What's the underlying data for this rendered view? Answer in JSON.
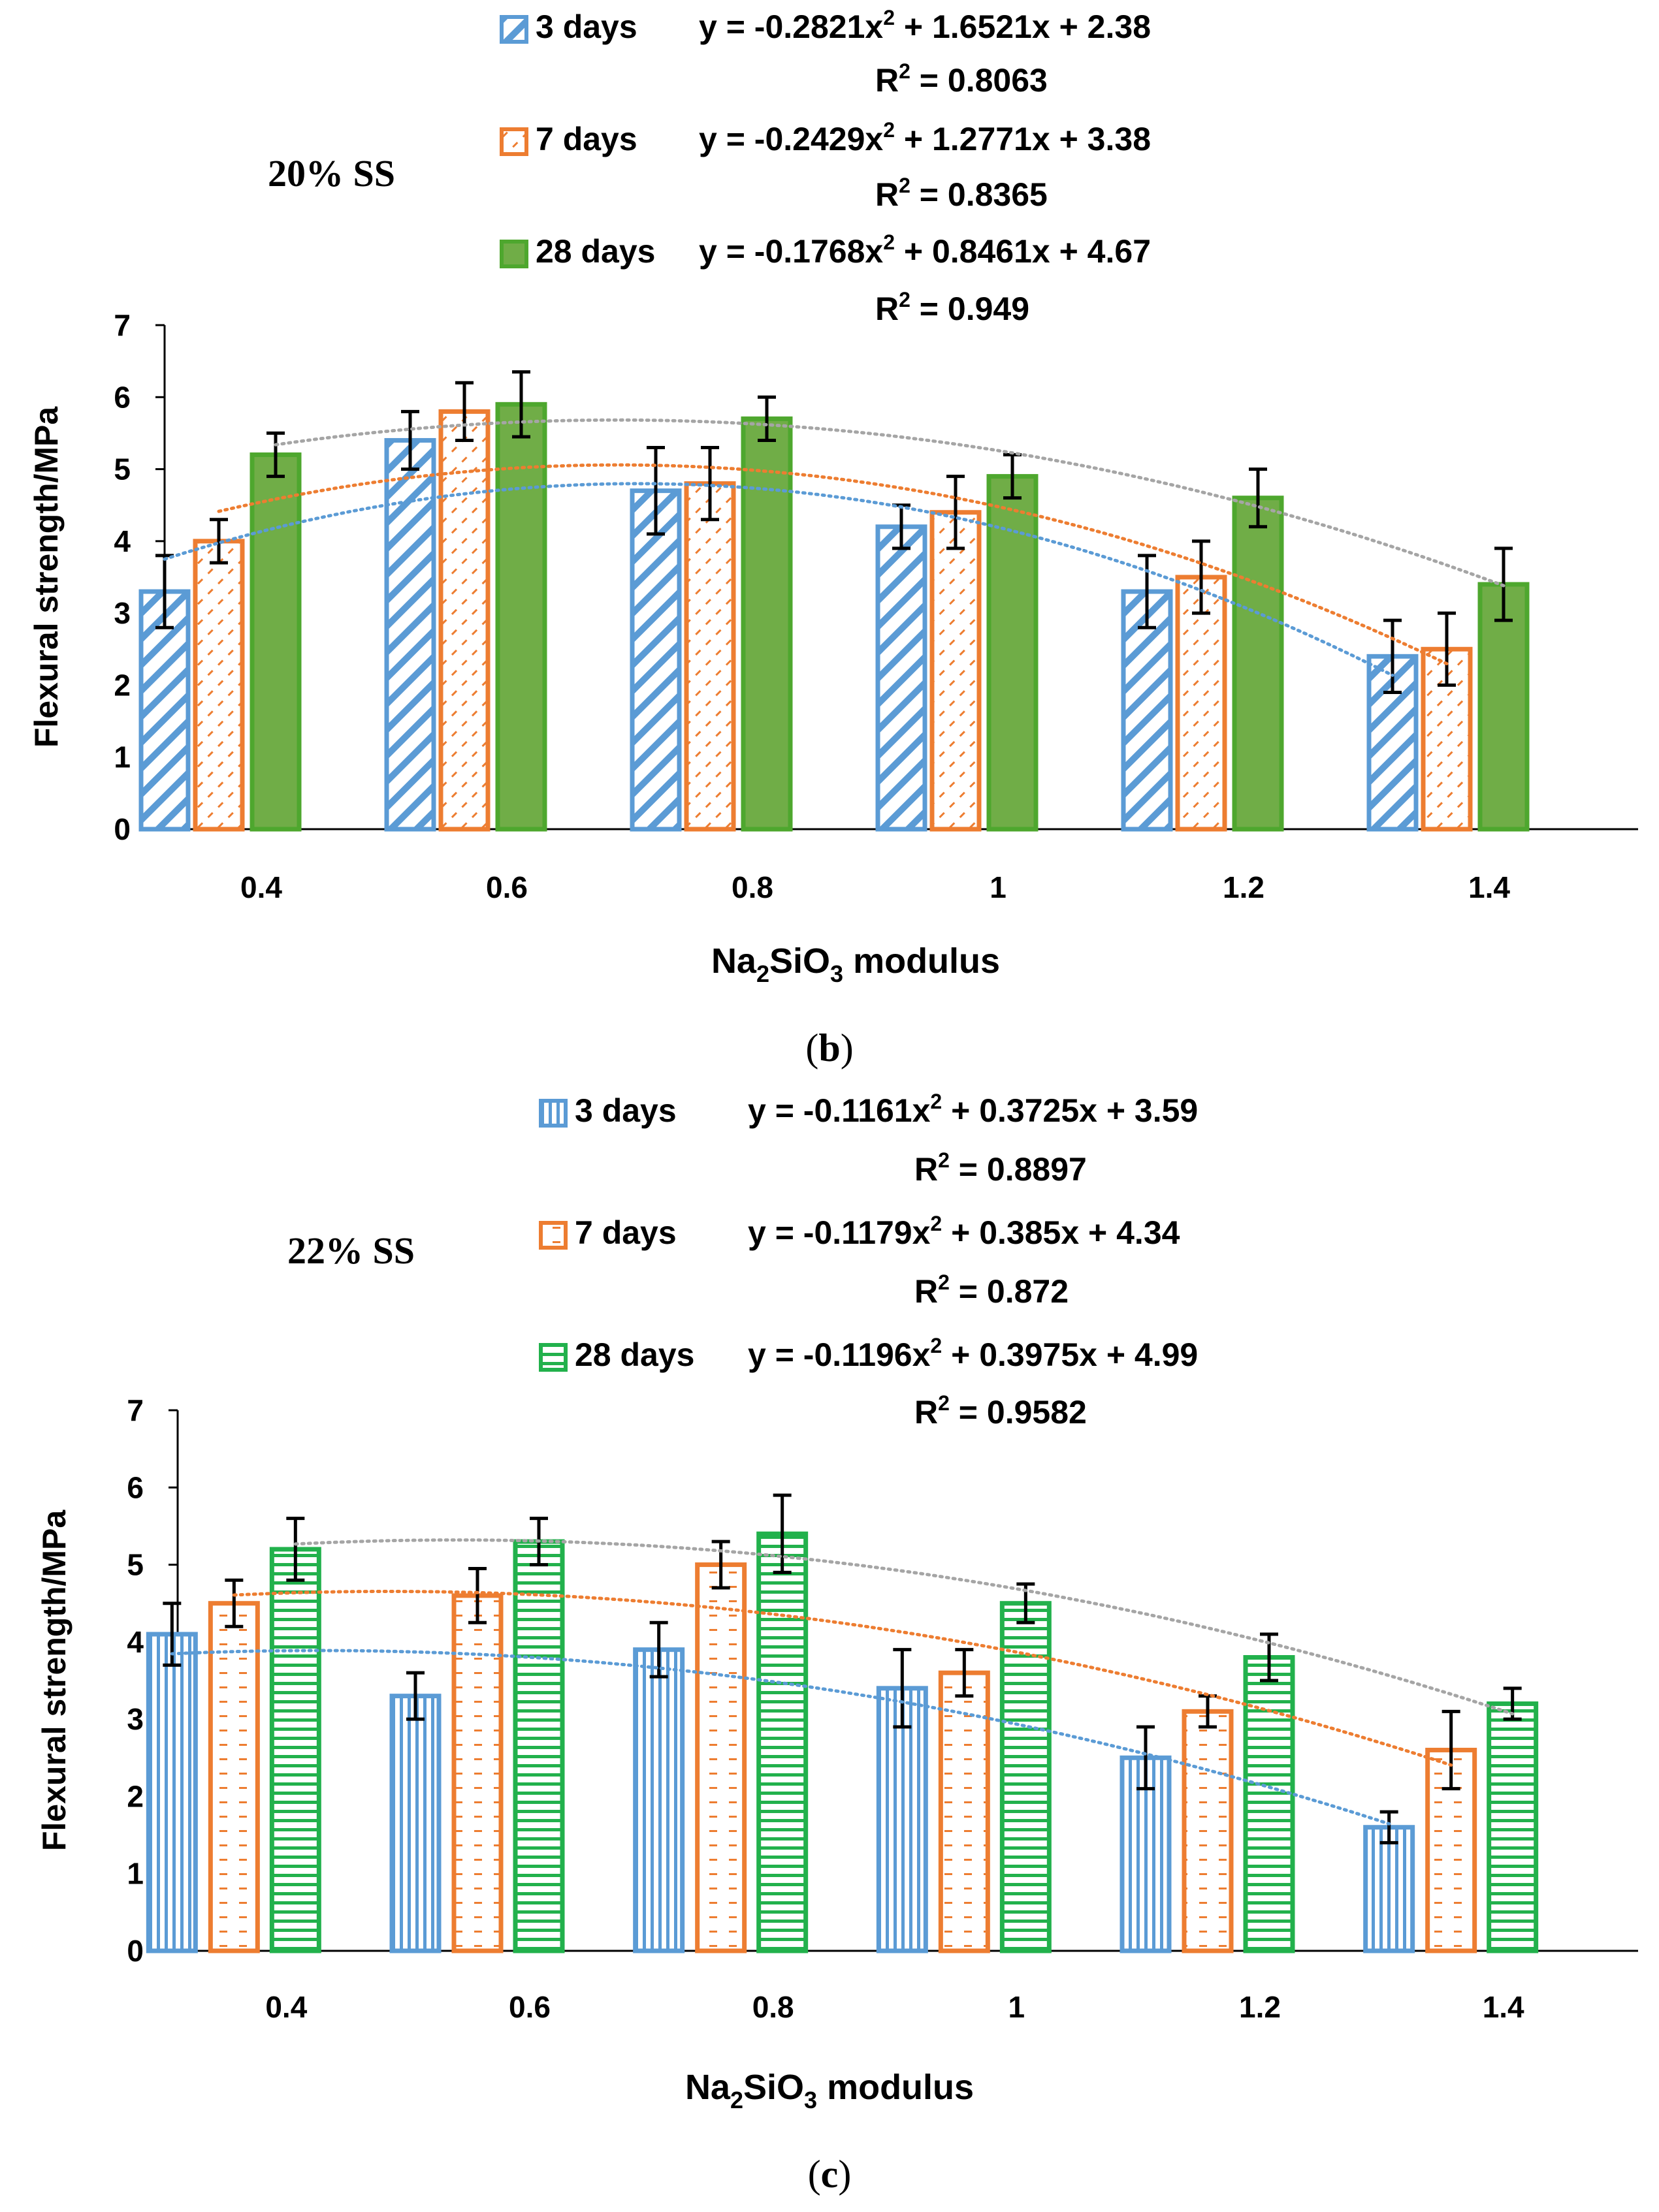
{
  "colors": {
    "blue": "#5b9bd5",
    "orange": "#ed7d31",
    "green": "#4ea72e",
    "green_bright": "#22b14c",
    "gray": "#a5a5a5",
    "axis": "#000000"
  },
  "chart_data": [
    {
      "type": "bar",
      "panel_label": "b",
      "annotation": "20% SS",
      "title": "",
      "xlabel_parts": [
        "Na",
        "2",
        "SiO",
        "3",
        " modulus"
      ],
      "ylabel": "Flexural strength/MPa",
      "ylim": [
        0,
        7
      ],
      "yticks": [
        "0",
        "1",
        "2",
        "3",
        "4",
        "5",
        "6",
        "7"
      ],
      "categories": [
        "0.4",
        "0.6",
        "0.8",
        "1",
        "1.2",
        "1.4"
      ],
      "x_values": [
        0.4,
        0.6,
        0.8,
        1.0,
        1.2,
        1.4
      ],
      "series": [
        {
          "name": "3 days",
          "color": "#5b9bd5",
          "pattern": "diagonal",
          "values": [
            3.3,
            5.4,
            4.7,
            4.2,
            3.3,
            2.4
          ],
          "errors": [
            0.5,
            0.4,
            0.6,
            0.3,
            0.5,
            0.5
          ],
          "trend_coeffs": [
            -0.2821,
            1.6521,
            2.38
          ],
          "equation_parts": [
            "y = -0.2821x",
            "2",
            " + 1.6521x + 2.38"
          ],
          "r2_parts": [
            "R",
            "2",
            " = 0.8063"
          ]
        },
        {
          "name": "7 days",
          "color": "#ed7d31",
          "pattern": "dashes",
          "values": [
            4.0,
            5.8,
            4.8,
            4.4,
            3.5,
            2.5
          ],
          "errors": [
            0.3,
            0.4,
            0.5,
            0.5,
            0.5,
            0.5
          ],
          "trend_coeffs": [
            -0.2429,
            1.2771,
            3.38
          ],
          "equation_parts": [
            "y = -0.2429x",
            "2",
            " + 1.2771x + 3.38"
          ],
          "r2_parts": [
            "R",
            "2",
            " = 0.8365"
          ]
        },
        {
          "name": "28 days",
          "color": "#4ea72e",
          "pattern": "solid",
          "values": [
            5.2,
            5.9,
            5.7,
            4.9,
            4.6,
            3.4
          ],
          "errors": [
            0.3,
            0.45,
            0.3,
            0.3,
            0.4,
            0.5
          ],
          "trend_coeffs": [
            -0.1768,
            0.8461,
            4.67
          ],
          "equation_parts": [
            "y = -0.1768x",
            "2",
            " + 0.8461x + 4.67"
          ],
          "r2_parts": [
            "R",
            "2",
            " = 0.949"
          ]
        }
      ]
    },
    {
      "type": "bar",
      "panel_label": "c",
      "annotation": "22% SS",
      "title": "",
      "xlabel_parts": [
        "Na",
        "2",
        "SiO",
        "3",
        " modulus"
      ],
      "ylabel": "Flexural strength/MPa",
      "ylim": [
        0,
        7
      ],
      "yticks": [
        "0",
        "1",
        "2",
        "3",
        "4",
        "5",
        "6",
        "7"
      ],
      "categories": [
        "0.4",
        "0.6",
        "0.8",
        "1",
        "1.2",
        "1.4"
      ],
      "x_values": [
        0.4,
        0.6,
        0.8,
        1.0,
        1.2,
        1.4
      ],
      "series": [
        {
          "name": "3 days",
          "color": "#5b9bd5",
          "pattern": "vertical",
          "values": [
            4.1,
            3.3,
            3.9,
            3.4,
            2.5,
            1.6
          ],
          "errors": [
            0.4,
            0.3,
            0.35,
            0.5,
            0.4,
            0.2
          ],
          "trend_coeffs": [
            -0.1161,
            0.3725,
            3.59
          ],
          "equation_parts": [
            "y = -0.1161x",
            "2",
            " + 0.3725x + 3.59"
          ],
          "r2_parts": [
            "R",
            "2",
            " = 0.8897"
          ]
        },
        {
          "name": "7 days",
          "color": "#ed7d31",
          "pattern": "hdashes",
          "values": [
            4.5,
            4.6,
            5.0,
            3.6,
            3.1,
            2.6
          ],
          "errors": [
            0.3,
            0.35,
            0.3,
            0.3,
            0.2,
            0.5
          ],
          "trend_coeffs": [
            -0.1179,
            0.385,
            4.34
          ],
          "equation_parts": [
            "y = -0.1179x",
            "2",
            " + 0.385x + 4.34"
          ],
          "r2_parts": [
            "R",
            "2",
            " = 0.872"
          ]
        },
        {
          "name": "28 days",
          "color": "#22b14c",
          "pattern": "horizontal",
          "values": [
            5.2,
            5.3,
            5.4,
            4.5,
            3.8,
            3.2
          ],
          "errors": [
            0.4,
            0.3,
            0.5,
            0.25,
            0.3,
            0.2
          ],
          "trend_coeffs": [
            -0.1196,
            0.3975,
            4.99
          ],
          "equation_parts": [
            "y = -0.1196x",
            "2",
            " + 0.3975x + 4.99"
          ],
          "r2_parts": [
            "R",
            "2",
            " = 0.9582"
          ]
        }
      ]
    }
  ]
}
